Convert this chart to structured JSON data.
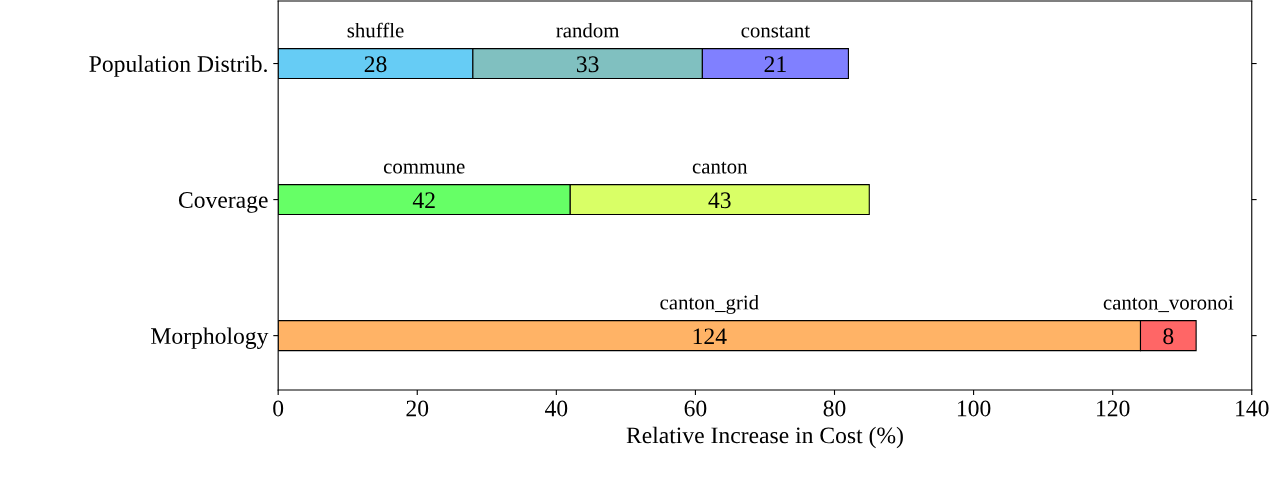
{
  "chart_data": {
    "type": "bar",
    "orientation": "horizontal",
    "stacked": true,
    "xlabel": "Relative Increase in Cost (%)",
    "categories": [
      "Population Distrib.",
      "Coverage",
      "Morphology"
    ],
    "series": [
      {
        "name": "shuffle",
        "color": "#66ccf5",
        "values": [
          28,
          null,
          null
        ]
      },
      {
        "name": "random",
        "color": "#80c0c0",
        "values": [
          33,
          null,
          null
        ]
      },
      {
        "name": "constant",
        "color": "#8080ff",
        "values": [
          21,
          null,
          null
        ]
      },
      {
        "name": "commune",
        "color": "#66ff66",
        "values": [
          null,
          42,
          null
        ]
      },
      {
        "name": "canton",
        "color": "#d9ff66",
        "values": [
          null,
          43,
          null
        ]
      },
      {
        "name": "canton_grid",
        "color": "#ffb366",
        "values": [
          null,
          null,
          124
        ]
      },
      {
        "name": "canton_voronoi",
        "color": "#ff6666",
        "values": [
          null,
          null,
          8
        ]
      }
    ],
    "xlim": [
      0,
      140
    ],
    "xticks": [
      0,
      20,
      40,
      60,
      80,
      100,
      120,
      140
    ],
    "data_labels": true,
    "grid": false,
    "legend": false
  }
}
